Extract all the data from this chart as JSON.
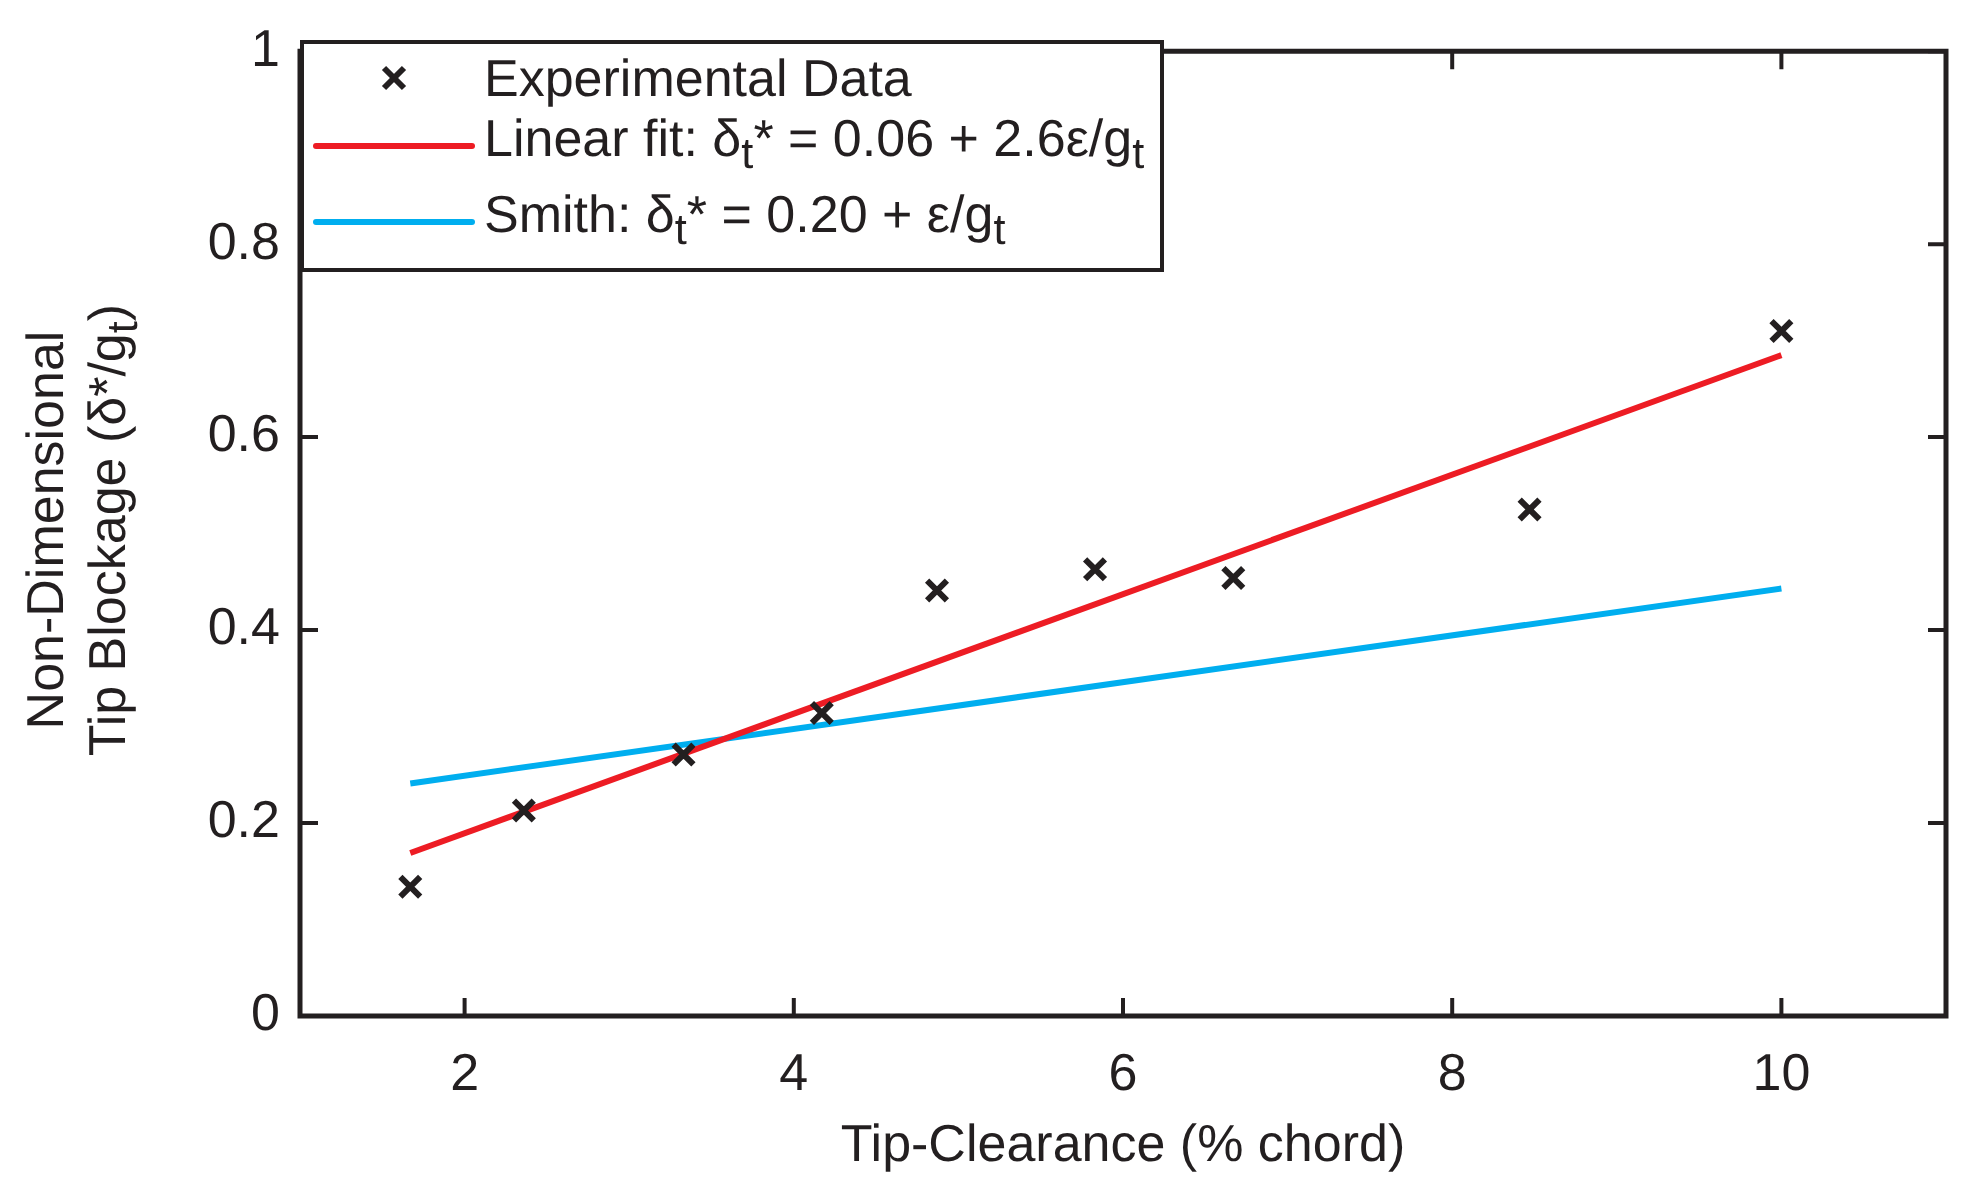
{
  "chart_data": {
    "type": "scatter",
    "xlabel": "Tip-Clearance (% chord)",
    "ylabel": "Non-Dimensional\nTip Blockage (δ*/g$_{t}$)",
    "xlim": [
      1,
      11
    ],
    "xticks": [
      2,
      4,
      6,
      8,
      10
    ],
    "ylim": [
      0,
      1
    ],
    "yticks": [
      0,
      0.2,
      0.4,
      0.6,
      0.8,
      1
    ],
    "legend": "top left",
    "series": [
      {
        "name": "Experimental Data",
        "type": "scatter",
        "marker": "cross",
        "color": "#231f20",
        "x": [
          1.67,
          2.36,
          3.33,
          4.17,
          4.87,
          5.83,
          6.67,
          8.47,
          10
        ],
        "values": [
          0.134,
          0.213,
          0.271,
          0.314,
          0.441,
          0.463,
          0.454,
          0.525,
          0.71
        ]
      },
      {
        "name": "Linear fit: δ$_{t}$* = 0.06 + 2.6ε/g$_{t}$",
        "type": "line",
        "marker": "none",
        "color": "#ed1c24",
        "x": [
          1.67,
          10
        ],
        "values": [
          0.169,
          0.685
        ]
      },
      {
        "name": "Smith: δ$_{t}$* = 0.20 + ε/g$_{t}$",
        "type": "line",
        "marker": "none",
        "color": "#00aeef",
        "x": [
          1.67,
          10
        ],
        "values": [
          0.241,
          0.443
        ]
      }
    ]
  }
}
